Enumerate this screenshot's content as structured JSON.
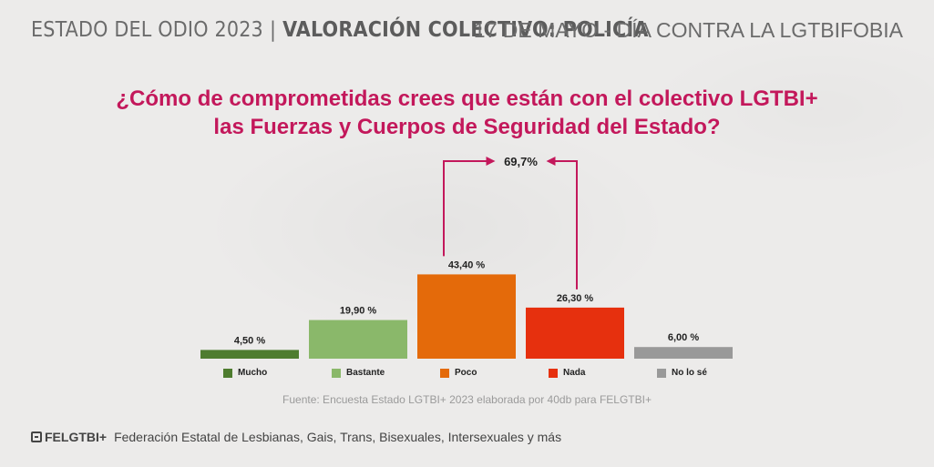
{
  "header": {
    "left_plain": "ESTADO DEL ODIO 2023",
    "separator": "|",
    "left_bold": "VALORACIÓN COLECTIVO: POLICÍA",
    "right": "17 DE MAYO - DÍA CONTRA LA LGTBIFOBIA"
  },
  "question": {
    "line1": "¿Cómo de comprometidas crees que están con el colectivo LGTBI+",
    "line2": "las Fuerzas y Cuerpos de Seguridad del Estado?"
  },
  "chart_data": {
    "type": "bar",
    "categories": [
      "Mucho",
      "Bastante",
      "Poco",
      "Nada",
      "No lo sé"
    ],
    "values": [
      4.5,
      19.9,
      43.4,
      26.3,
      6.0
    ],
    "value_labels": [
      "4,50 %",
      "19,90 %",
      "43,40 %",
      "26,30 %",
      "6,00 %"
    ],
    "colors": [
      "#4e7c2f",
      "#8ab86a",
      "#e46a0a",
      "#e6300e",
      "#999999"
    ],
    "annotation": {
      "label": "69,7%",
      "combines": [
        "Poco",
        "Nada"
      ],
      "color": "#c3185b"
    },
    "ylim": [
      0,
      45
    ],
    "legend_position": "bottom",
    "grid": false
  },
  "source": "Fuente: Encuesta Estado LGTBI+ 2023 elaborada por 40db para FELGTBI+",
  "footer": {
    "logo_text": "FELGTBI+",
    "text": "Federación Estatal de Lesbianas, Gais, Trans, Bisexuales, Intersexuales y más"
  }
}
